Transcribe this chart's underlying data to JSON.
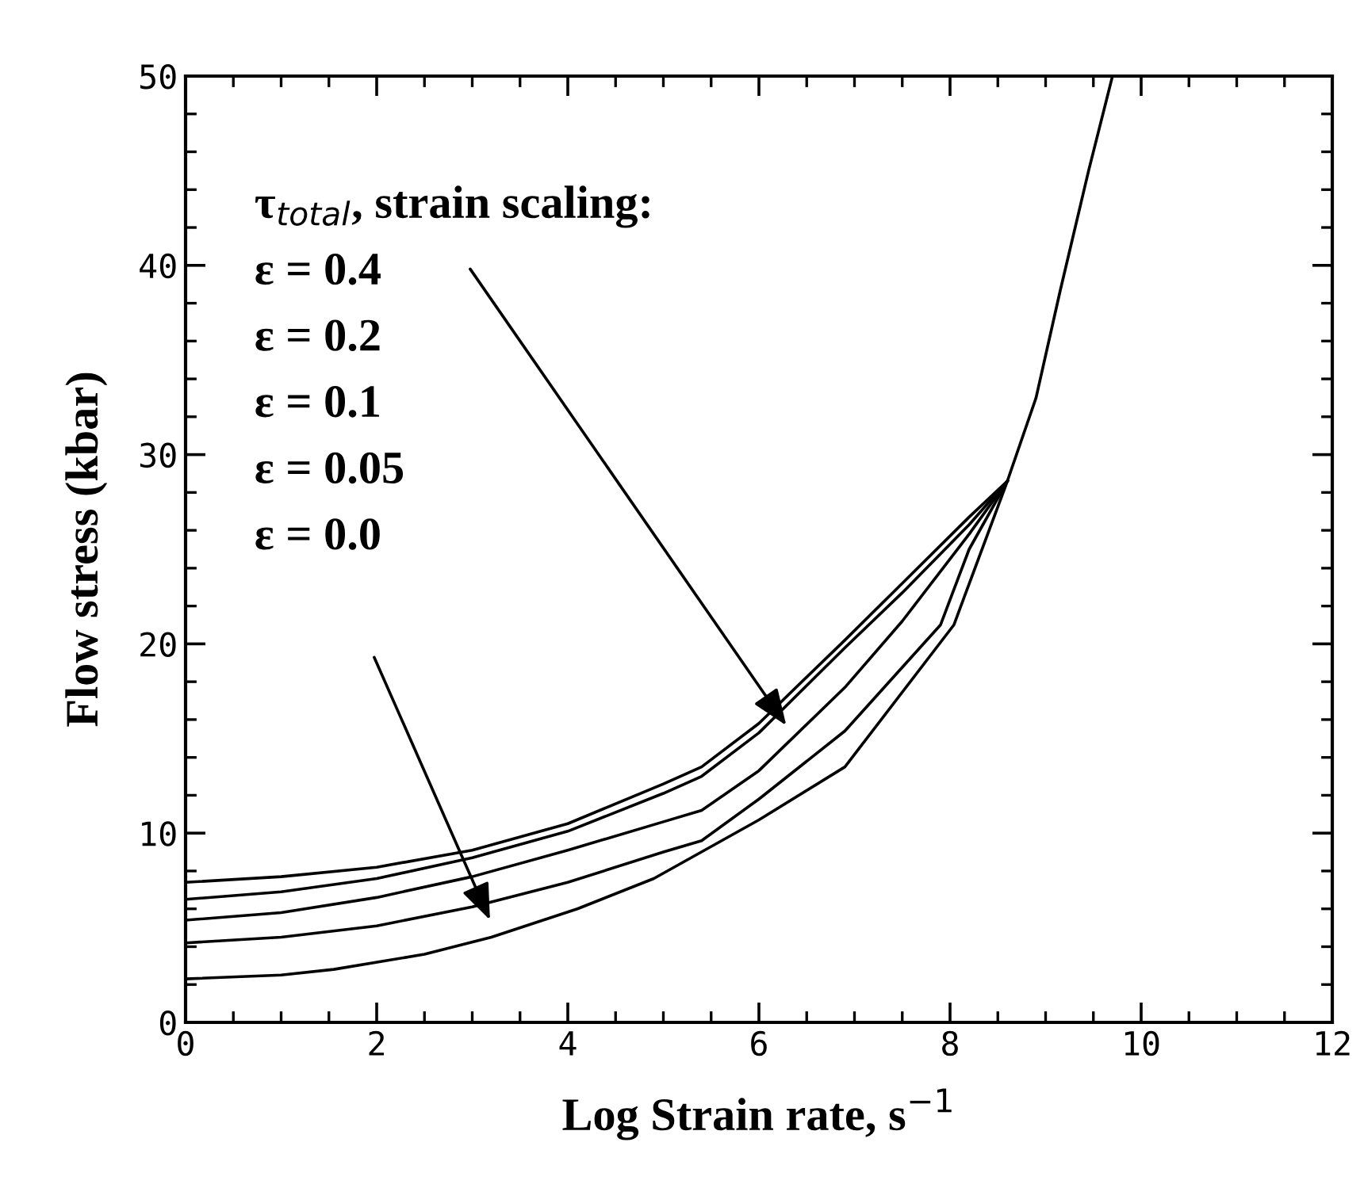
{
  "chart_data": {
    "type": "line",
    "xlabel": "Log Strain rate, s$^{−1}$",
    "ylabel": "Flow stress (kbar)",
    "xlim": [
      0,
      12
    ],
    "ylim": [
      0,
      50
    ],
    "xticks": [
      0,
      2,
      4,
      6,
      8,
      10,
      12
    ],
    "yticks": [
      0,
      10,
      20,
      30,
      40,
      50
    ],
    "grid": false,
    "legend": false,
    "marker": "none",
    "line_style": "solid",
    "series": [
      {
        "color": "#000000",
        "x": [
          0,
          1,
          2,
          3,
          4,
          5,
          5.4,
          6,
          6.9,
          7.5,
          8.2,
          8.6,
          8.9,
          9.15,
          9.45,
          9.7
        ],
        "values": [
          7.4,
          7.7,
          8.2,
          9.1,
          10.5,
          12.6,
          13.5,
          15.8,
          20.2,
          23.2,
          26.7,
          28.6,
          33,
          38.6,
          45,
          50
        ]
      },
      {
        "color": "#000000",
        "x": [
          0,
          1,
          2,
          3,
          4,
          5,
          5.4,
          6,
          6.9,
          7.5,
          8.2,
          8.6
        ],
        "values": [
          6.5,
          6.9,
          7.6,
          8.7,
          10.1,
          12.1,
          13,
          15.3,
          19.8,
          22.7,
          26.3,
          28.6
        ]
      },
      {
        "color": "#000000",
        "x": [
          0,
          1,
          2,
          3,
          4,
          5,
          5.4,
          6,
          6.9,
          7.5,
          8.2,
          8.6
        ],
        "values": [
          5.4,
          5.8,
          6.6,
          7.7,
          9.1,
          10.6,
          11.2,
          13.3,
          17.7,
          21.2,
          25.8,
          28.6
        ]
      },
      {
        "color": "#000000",
        "x": [
          0,
          1,
          2,
          3,
          4,
          5,
          5.4,
          6,
          6.9,
          7.9,
          8.2,
          8.6
        ],
        "values": [
          4.2,
          4.5,
          5.1,
          6.1,
          7.4,
          9.0,
          9.6,
          11.8,
          15.4,
          21,
          25,
          28.6
        ]
      },
      {
        "color": "#000000",
        "x": [
          0,
          1,
          1.55,
          2.5,
          3.2,
          4.1,
          4.9,
          6.0,
          6.9,
          8.04,
          8.6
        ],
        "values": [
          2.3,
          2.5,
          2.8,
          3.6,
          4.5,
          6.0,
          7.6,
          10.7,
          13.5,
          21,
          28.6
        ]
      }
    ],
    "annotations": [
      "τ$_{total}$, strain scaling:",
      "ε = 0.4",
      "ε = 0.2",
      "ε = 0.1",
      "ε = 0.05",
      "ε = 0.0"
    ]
  }
}
